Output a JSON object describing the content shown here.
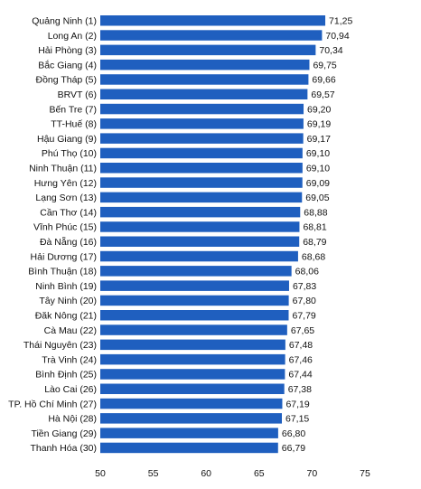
{
  "chart_data": {
    "type": "bar",
    "orientation": "horizontal",
    "title": "",
    "xlabel": "",
    "ylabel": "",
    "xlim": [
      50,
      75
    ],
    "xticks": [
      50,
      55,
      60,
      65,
      70,
      75
    ],
    "grid": false,
    "bar_color": "#1f5fbf",
    "categories": [
      "Quảng Ninh (1)",
      "Long An (2)",
      "Hải Phòng (3)",
      "Bắc Giang (4)",
      "Đồng Tháp (5)",
      "BRVT (6)",
      "Bến Tre (7)",
      "TT-Huế (8)",
      "Hậu Giang (9)",
      "Phú Thọ (10)",
      "Ninh Thuận (11)",
      "Hưng Yên (12)",
      "Lạng Sơn (13)",
      "Cần Thơ (14)",
      "Vĩnh Phúc (15)",
      "Đà Nẵng (16)",
      "Hải Dương (17)",
      "Bình Thuận (18)",
      "Ninh Bình (19)",
      "Tây Ninh (20)",
      "Đăk Nông (21)",
      "Cà Mau (22)",
      "Thái Nguyên (23)",
      "Trà Vinh (24)",
      "Bình Định (25)",
      "Lào Cai (26)",
      "TP. Hồ Chí Minh (27)",
      "Hà Nội (28)",
      "Tiền Giang (29)",
      "Thanh Hóa (30)"
    ],
    "values": [
      71.25,
      70.94,
      70.34,
      69.75,
      69.66,
      69.57,
      69.2,
      69.19,
      69.17,
      69.1,
      69.1,
      69.09,
      69.05,
      68.88,
      68.81,
      68.79,
      68.68,
      68.06,
      67.83,
      67.8,
      67.79,
      67.65,
      67.48,
      67.46,
      67.44,
      67.38,
      67.19,
      67.15,
      66.8,
      66.79
    ],
    "value_labels": [
      "71,25",
      "70,94",
      "70,34",
      "69,75",
      "69,66",
      "69,57",
      "69,20",
      "69,19",
      "69,17",
      "69,10",
      "69,10",
      "69,09",
      "69,05",
      "68,88",
      "68,81",
      "68,79",
      "68,68",
      "68,06",
      "67,83",
      "67,80",
      "67,79",
      "67,65",
      "67,48",
      "67,46",
      "67,44",
      "67,38",
      "67,19",
      "67,15",
      "66,80",
      "66,79"
    ]
  }
}
